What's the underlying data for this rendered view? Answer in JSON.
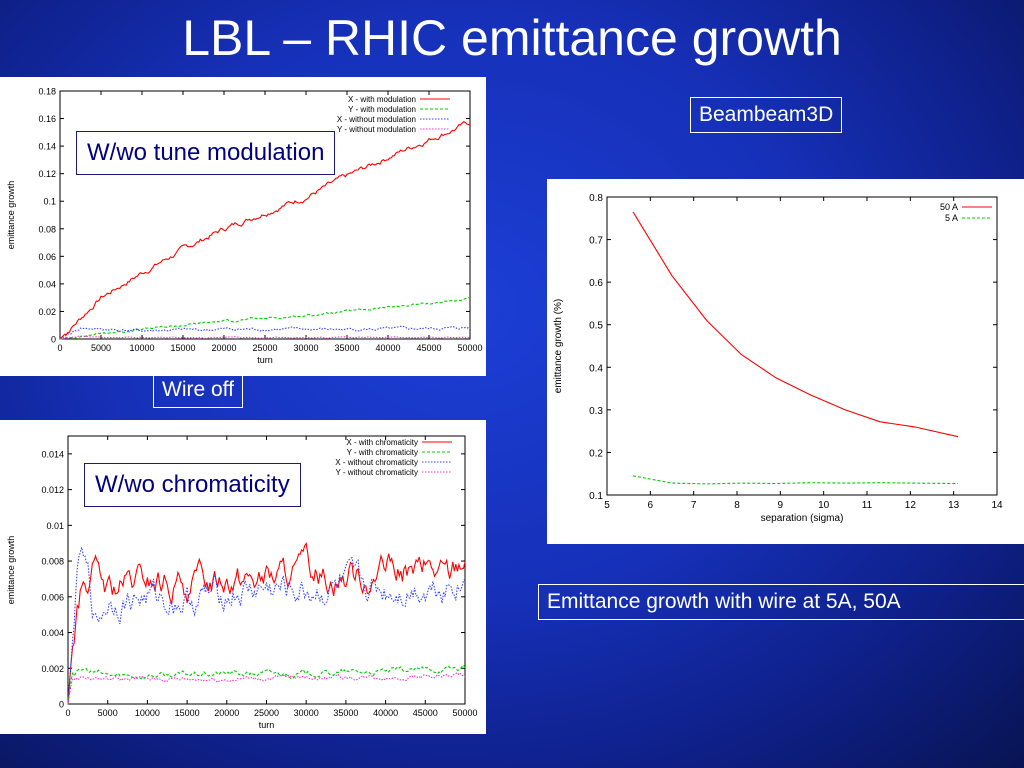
{
  "slide": {
    "title": "LBL – RHIC emittance growth",
    "labels": {
      "beambeam": "Beambeam3D",
      "wire_off": "Wire off",
      "emittance_wire": "Emittance growth with wire at 5A, 50A",
      "tune_mod": "W/wo tune modulation",
      "chromaticity": "W/wo chromaticity"
    }
  },
  "chart_data": [
    {
      "id": "tune",
      "type": "line",
      "xlabel": "turn",
      "ylabel": "emittance growth",
      "xlim": [
        0,
        50000
      ],
      "ylim": [
        0,
        0.18
      ],
      "xticks": [
        0,
        5000,
        10000,
        15000,
        20000,
        25000,
        30000,
        35000,
        40000,
        45000,
        50000
      ],
      "yticks": [
        0,
        0.02,
        0.04,
        0.06,
        0.08,
        0.1,
        0.12,
        0.14,
        0.16,
        0.18
      ],
      "legend_position": "top-right",
      "series": [
        {
          "name": "X - with modulation",
          "color": "#ff0000",
          "style": "solid",
          "x": [
            0,
            5000,
            10000,
            15000,
            20000,
            25000,
            30000,
            35000,
            40000,
            45000,
            50000
          ],
          "y": [
            0,
            0.03,
            0.048,
            0.065,
            0.08,
            0.092,
            0.103,
            0.118,
            0.132,
            0.145,
            0.157
          ],
          "noise": 0.0015
        },
        {
          "name": "Y - with modulation",
          "color": "#00cc00",
          "style": "dashed",
          "x": [
            0,
            5000,
            10000,
            15000,
            20000,
            25000,
            30000,
            35000,
            40000,
            45000,
            50000
          ],
          "y": [
            0,
            0.004,
            0.007,
            0.01,
            0.013,
            0.015,
            0.017,
            0.02,
            0.023,
            0.026,
            0.029
          ],
          "noise": 0.0006
        },
        {
          "name": "X - without modulation",
          "color": "#3344ff",
          "style": "dotted",
          "x": [
            0,
            2500,
            5000,
            10000,
            20000,
            30000,
            40000,
            50000
          ],
          "y": [
            0,
            0.008,
            0.007,
            0.006,
            0.007,
            0.007,
            0.007,
            0.008
          ],
          "noise": 0.0008
        },
        {
          "name": "Y - without modulation",
          "color": "#ff33cc",
          "style": "dotted",
          "x": [
            0,
            2500,
            5000,
            10000,
            20000,
            30000,
            40000,
            50000
          ],
          "y": [
            0,
            0.002,
            0.001,
            0.001,
            0.001,
            0.001,
            0.001,
            0.001
          ],
          "noise": 0.0003
        }
      ]
    },
    {
      "id": "chrom",
      "type": "line",
      "xlabel": "turn",
      "ylabel": "emittance growth",
      "xlim": [
        0,
        50000
      ],
      "ylim": [
        0,
        0.015
      ],
      "xticks": [
        0,
        5000,
        10000,
        15000,
        20000,
        25000,
        30000,
        35000,
        40000,
        45000,
        50000
      ],
      "yticks": [
        0,
        0.002,
        0.004,
        0.006,
        0.008,
        0.01,
        0.012,
        0.014
      ],
      "legend_position": "top-right",
      "series": [
        {
          "name": "X - with chromaticity",
          "color": "#ff0000",
          "style": "solid",
          "x": [
            0,
            500,
            1500,
            3000,
            5000,
            10000,
            15000,
            20000,
            25000,
            30000,
            35000,
            40000,
            45000,
            48000,
            50000
          ],
          "y": [
            0,
            0.003,
            0.0058,
            0.0075,
            0.0062,
            0.0068,
            0.0065,
            0.0073,
            0.007,
            0.0074,
            0.0072,
            0.0073,
            0.0075,
            0.0072,
            0.0085
          ],
          "noise": 0.0006
        },
        {
          "name": "Y - with chromaticity",
          "color": "#00cc00",
          "style": "dashed",
          "x": [
            0,
            500,
            2000,
            5000,
            10000,
            20000,
            30000,
            40000,
            50000
          ],
          "y": [
            0,
            0.0017,
            0.0019,
            0.0016,
            0.0016,
            0.0017,
            0.0017,
            0.0018,
            0.002
          ],
          "noise": 0.00012
        },
        {
          "name": "X - without chromaticity",
          "color": "#3344ff",
          "style": "dotted",
          "x": [
            0,
            800,
            1500,
            2500,
            3500,
            5000,
            10000,
            15000,
            20000,
            25000,
            30000,
            35000,
            40000,
            45000,
            50000
          ],
          "y": [
            0,
            0.005,
            0.0085,
            0.007,
            0.0045,
            0.0058,
            0.006,
            0.0058,
            0.0062,
            0.0064,
            0.0063,
            0.0065,
            0.0064,
            0.0066,
            0.007
          ],
          "noise": 0.0006
        },
        {
          "name": "Y - without chromaticity",
          "color": "#ff33cc",
          "style": "dotted",
          "x": [
            0,
            500,
            2000,
            5000,
            10000,
            20000,
            30000,
            40000,
            50000
          ],
          "y": [
            0,
            0.0014,
            0.0015,
            0.0014,
            0.0014,
            0.0014,
            0.0015,
            0.0015,
            0.0016
          ],
          "noise": 0.0001
        }
      ]
    },
    {
      "id": "sep",
      "type": "line",
      "xlabel": "separation (sigma)",
      "ylabel": "emittance growth (%)",
      "xlim": [
        5,
        14
      ],
      "ylim": [
        0.1,
        0.8
      ],
      "xticks": [
        5,
        6,
        7,
        8,
        9,
        10,
        11,
        12,
        13,
        14
      ],
      "yticks": [
        0.1,
        0.2,
        0.3,
        0.4,
        0.5,
        0.6,
        0.7,
        0.8
      ],
      "legend_position": "top-right",
      "series": [
        {
          "name": "50 A",
          "color": "#ff0000",
          "style": "solid",
          "x": [
            5.6,
            6.5,
            7.3,
            8.1,
            8.9,
            9.7,
            10.5,
            11.3,
            12.1,
            13.1
          ],
          "y": [
            0.765,
            0.615,
            0.51,
            0.43,
            0.375,
            0.335,
            0.3,
            0.272,
            0.26,
            0.237
          ],
          "noise": 0
        },
        {
          "name": "5 A",
          "color": "#00cc00",
          "style": "dashed",
          "x": [
            5.6,
            6.5,
            7.3,
            8.1,
            8.9,
            9.7,
            10.5,
            11.3,
            12.1,
            13.1
          ],
          "y": [
            0.145,
            0.128,
            0.126,
            0.128,
            0.127,
            0.129,
            0.128,
            0.129,
            0.128,
            0.127
          ],
          "noise": 0
        }
      ]
    }
  ]
}
